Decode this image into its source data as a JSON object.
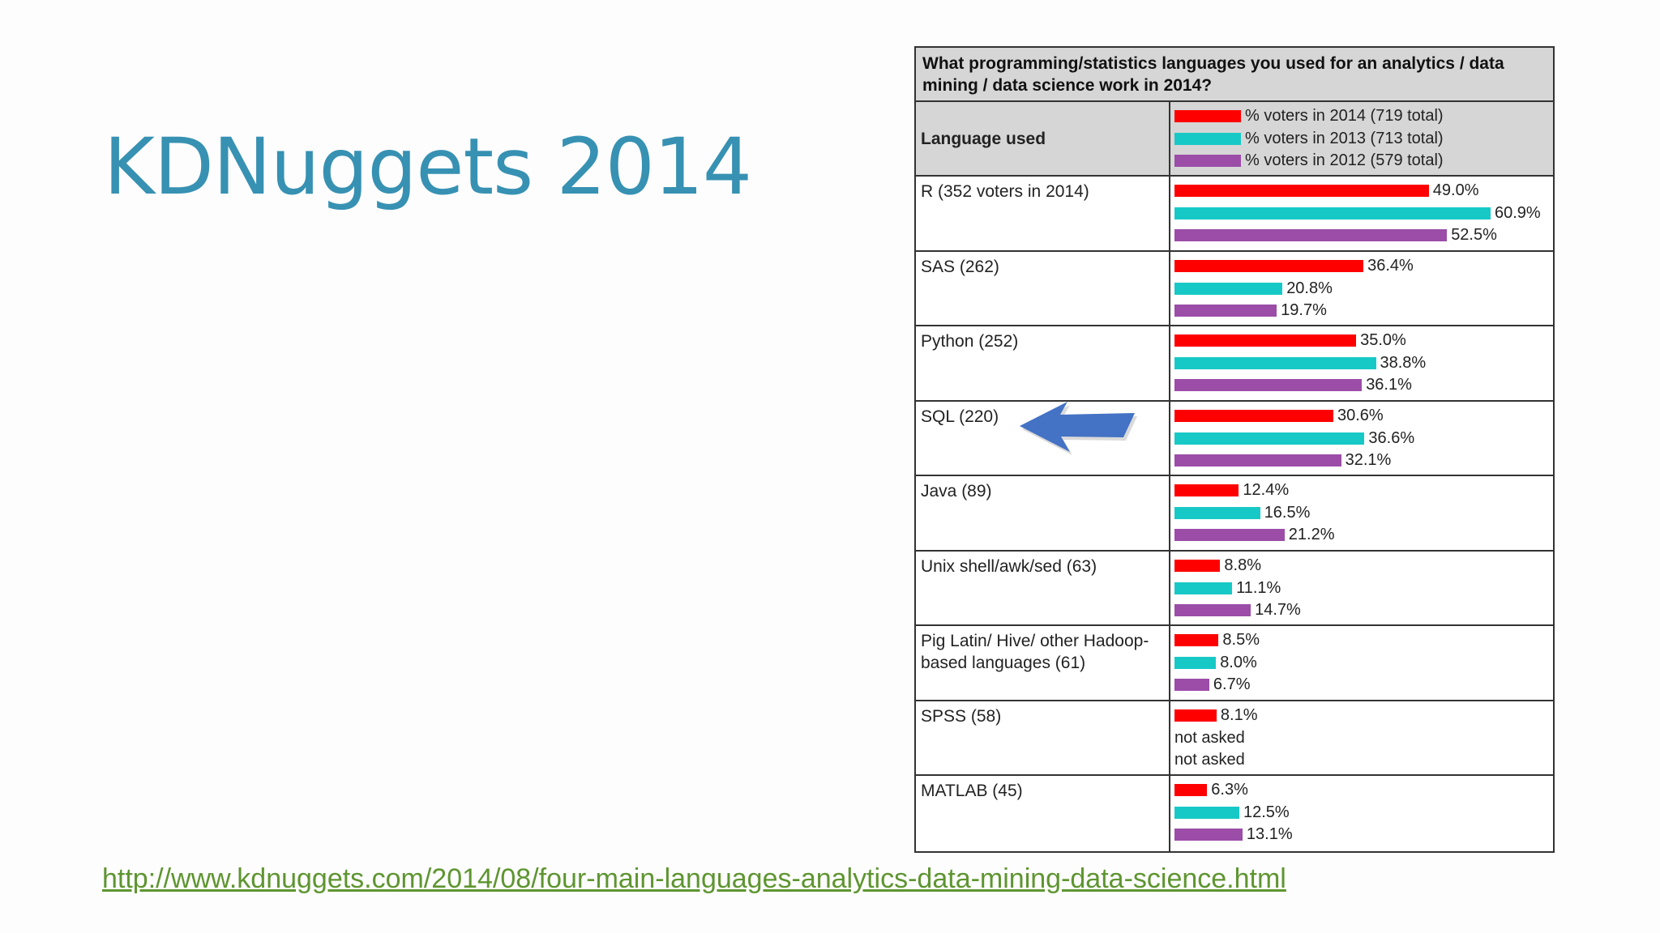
{
  "slide": {
    "title": "KDNuggets 2014",
    "source_link": "http://www.kdnuggets.com/2014/08/four-main-languages-analytics-data-mining-data-science.html"
  },
  "chart_data": {
    "type": "bar",
    "orientation": "horizontal",
    "title": "What programming/statistics languages you used for an analytics / data mining / data science work in 2014?",
    "category_header": "Language used",
    "categories": [
      "R (352 voters in 2014)",
      "SAS (262)",
      "Python (252)",
      "SQL (220)",
      "Java (89)",
      "Unix shell/awk/sed (63)",
      "Pig Latin/ Hive/ other Hadoop-based languages (61)",
      "SPSS (58)",
      "MATLAB (45)"
    ],
    "series": [
      {
        "name": "% voters in 2014 (719 total)",
        "color": "#ff0000",
        "values": [
          49.0,
          36.4,
          35.0,
          30.6,
          12.4,
          8.8,
          8.5,
          8.1,
          6.3
        ],
        "labels": [
          "49.0%",
          "36.4%",
          "35.0%",
          "30.6%",
          "12.4%",
          "8.8%",
          "8.5%",
          "8.1%",
          "6.3%"
        ]
      },
      {
        "name": "% voters in 2013 (713 total)",
        "color": "#17c9c6",
        "values": [
          60.9,
          20.8,
          38.8,
          36.6,
          16.5,
          11.1,
          8.0,
          null,
          12.5
        ],
        "labels": [
          "60.9%",
          "20.8%",
          "38.8%",
          "36.6%",
          "16.5%",
          "11.1%",
          "8.0%",
          "not asked",
          "12.5%"
        ]
      },
      {
        "name": "% voters in 2012 (579 total)",
        "color": "#9b4da8",
        "values": [
          52.5,
          19.7,
          36.1,
          32.1,
          21.2,
          14.7,
          6.7,
          null,
          13.1
        ],
        "labels": [
          "52.5%",
          "19.7%",
          "36.1%",
          "32.1%",
          "21.2%",
          "14.7%",
          "6.7%",
          "not asked",
          "13.1%"
        ]
      }
    ],
    "xlim": [
      0,
      60.9
    ],
    "legend": "top",
    "grid": false
  },
  "annotation": {
    "arrow_points_to": "SQL (220)",
    "color": "#4472c4"
  }
}
